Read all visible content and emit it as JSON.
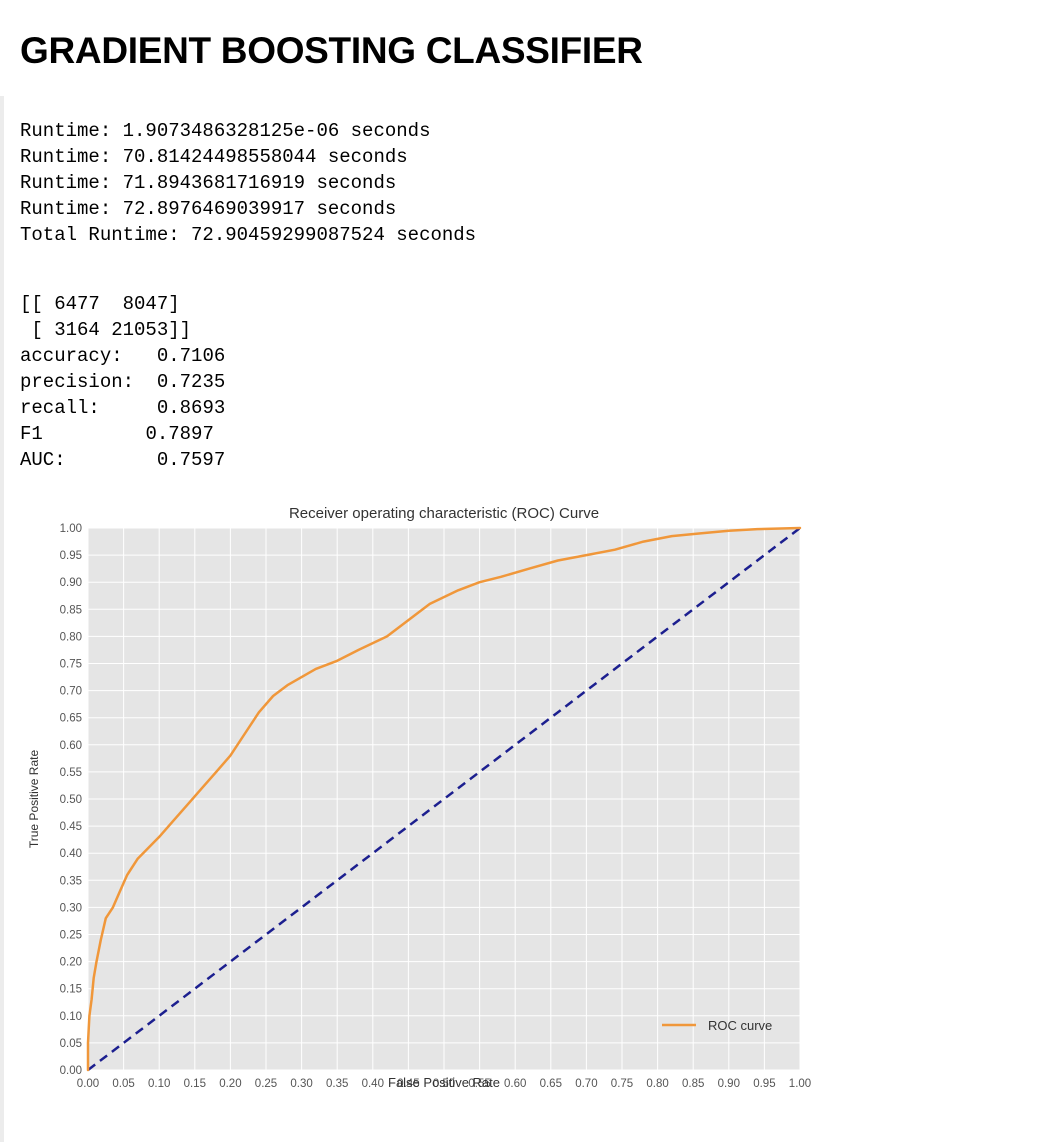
{
  "page": {
    "title": "GRADIENT BOOSTING CLASSIFIER"
  },
  "runtime_log": [
    "Runtime: 1.9073486328125e-06 seconds",
    "Runtime: 70.81424498558044 seconds",
    "Runtime: 71.8943681716919 seconds",
    "Runtime: 72.8976469039917 seconds",
    "Total Runtime: 72.90459299087524 seconds"
  ],
  "confusion_matrix": {
    "line1": "[[ 6477  8047]",
    "line2": " [ 3164 21053]]",
    "values": [
      [
        6477,
        8047
      ],
      [
        3164,
        21053
      ]
    ]
  },
  "metrics": [
    {
      "label": "accuracy:",
      "value": "0.7106"
    },
    {
      "label": "precision:",
      "value": "0.7235"
    },
    {
      "label": "recall:",
      "value": "0.8693"
    },
    {
      "label": "F1",
      "value": "0.7897"
    },
    {
      "label": "AUC:",
      "value": "0.7597"
    }
  ],
  "colors": {
    "plot_background": "#e5e5e5",
    "grid": "#ffffff",
    "roc_line": "#f0973a",
    "diagonal": "#1c1f8f",
    "tick_text": "#555555"
  },
  "chart_data": {
    "type": "line",
    "title": "Receiver operating characteristic (ROC) Curve",
    "xlabel": "False Positive Rate",
    "ylabel": "True Positive Rate",
    "xlim": [
      0,
      1
    ],
    "ylim": [
      0,
      1
    ],
    "grid": true,
    "legend_position": "lower-right",
    "xticks": [
      "0.00",
      "0.05",
      "0.10",
      "0.15",
      "0.20",
      "0.25",
      "0.30",
      "0.35",
      "0.40",
      "0.45",
      "0.50",
      "0.55",
      "0.60",
      "0.65",
      "0.70",
      "0.75",
      "0.80",
      "0.85",
      "0.90",
      "0.95",
      "1.00"
    ],
    "yticks": [
      "0.00",
      "0.05",
      "0.10",
      "0.15",
      "0.20",
      "0.25",
      "0.30",
      "0.35",
      "0.40",
      "0.45",
      "0.50",
      "0.55",
      "0.60",
      "0.65",
      "0.70",
      "0.75",
      "0.80",
      "0.85",
      "0.90",
      "0.95",
      "1.00"
    ],
    "series": [
      {
        "name": "ROC curve",
        "style": "solid",
        "x": [
          0,
          0,
          0.002,
          0.005,
          0.008,
          0.012,
          0.018,
          0.025,
          0.035,
          0.045,
          0.055,
          0.07,
          0.085,
          0.1,
          0.12,
          0.14,
          0.16,
          0.18,
          0.2,
          0.22,
          0.24,
          0.26,
          0.28,
          0.3,
          0.32,
          0.35,
          0.38,
          0.42,
          0.45,
          0.48,
          0.52,
          0.55,
          0.58,
          0.62,
          0.66,
          0.7,
          0.74,
          0.78,
          0.82,
          0.86,
          0.9,
          0.94,
          1.0
        ],
        "y": [
          0,
          0.05,
          0.1,
          0.13,
          0.17,
          0.2,
          0.24,
          0.28,
          0.3,
          0.33,
          0.36,
          0.39,
          0.41,
          0.43,
          0.46,
          0.49,
          0.52,
          0.55,
          0.58,
          0.62,
          0.66,
          0.69,
          0.71,
          0.725,
          0.74,
          0.755,
          0.775,
          0.8,
          0.83,
          0.86,
          0.885,
          0.9,
          0.91,
          0.925,
          0.94,
          0.95,
          0.96,
          0.975,
          0.985,
          0.99,
          0.995,
          0.998,
          1.0
        ]
      },
      {
        "style": "dashed",
        "x": [
          0,
          1
        ],
        "y": [
          0,
          1
        ]
      }
    ]
  }
}
